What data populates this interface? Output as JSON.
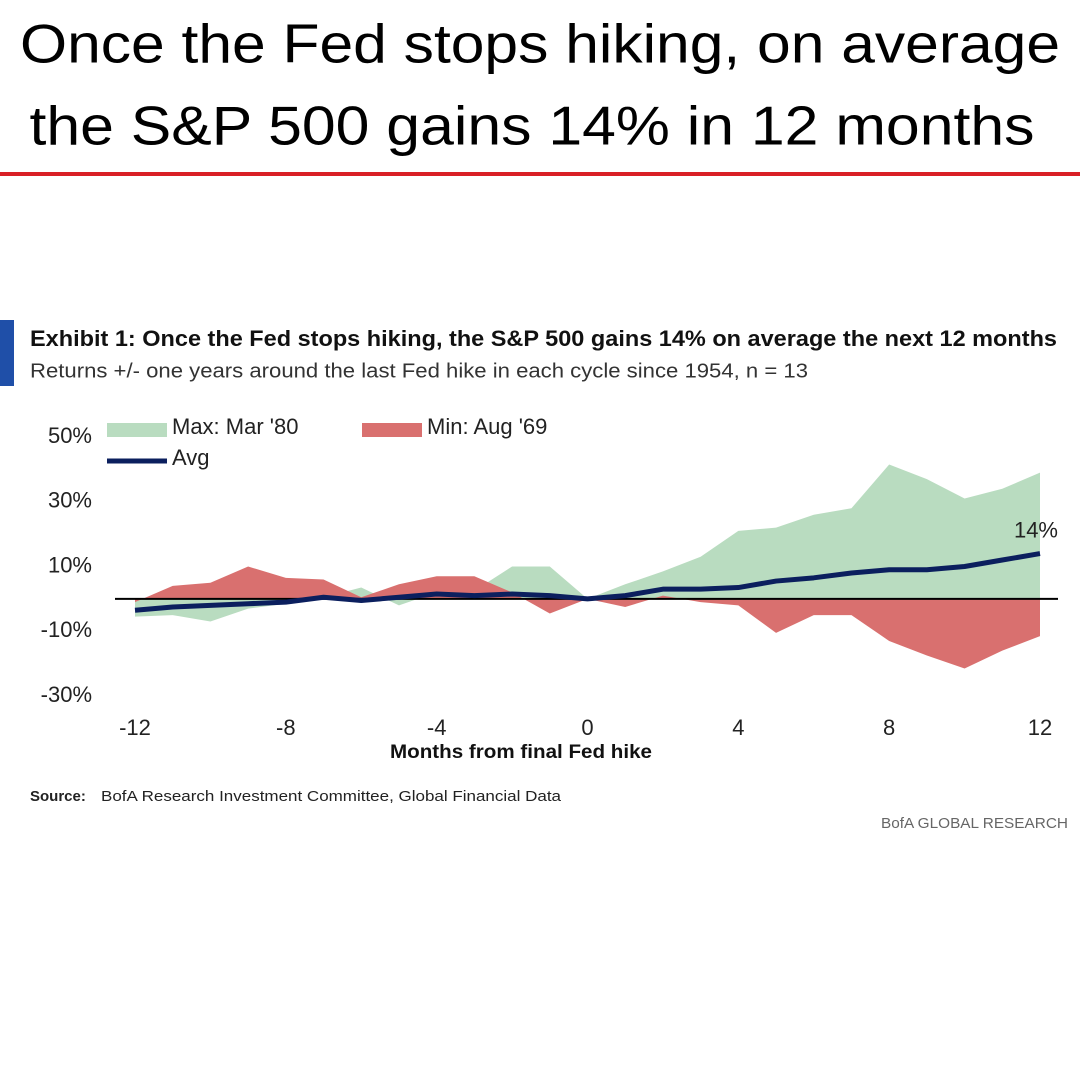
{
  "headline": [
    "Once the Fed stops hiking, on average",
    "the S&P 500 gains 14% in 12 months"
  ],
  "chart_data": {
    "type": "area",
    "title": "Exhibit 1:  Once the Fed stops hiking, the S&P 500 gains 14% on average the next 12 months",
    "subtitle": "Returns +/- one years around the last Fed hike in each cycle since 1954, n = 13",
    "x_label": "Months from final Fed hike",
    "x": [
      -12,
      -11,
      -10,
      -9,
      -8,
      -7,
      -6,
      -5,
      -4,
      -3,
      -2,
      -1,
      0,
      1,
      2,
      3,
      4,
      5,
      6,
      7,
      8,
      9,
      10,
      11,
      12
    ],
    "series": [
      {
        "name": "Max: Mar '80",
        "type": "area",
        "color": "#b9dcc0",
        "values": [
          -5.5,
          -5,
          -7,
          -3,
          -1.5,
          0.5,
          3.5,
          -2,
          2,
          2.5,
          10,
          10,
          0,
          4.5,
          8.5,
          13,
          21,
          22,
          26,
          28,
          41.5,
          37,
          31,
          34,
          39
        ]
      },
      {
        "name": "Min: Aug '69",
        "type": "area",
        "color": "#d9706f",
        "values": [
          -1,
          4,
          5,
          10,
          6.5,
          6,
          0.5,
          4.5,
          7,
          7,
          2,
          -4.5,
          0,
          -2.5,
          1,
          -1,
          -2,
          -10.5,
          -5,
          -5,
          -13,
          -17.5,
          -21.5,
          -16,
          -11.5
        ]
      },
      {
        "name": "Avg",
        "type": "line",
        "color": "#0b1f5e",
        "values": [
          -3.5,
          -2.5,
          -2,
          -1.5,
          -1,
          0.5,
          -0.5,
          0.5,
          1.5,
          1,
          1.5,
          1,
          0,
          1,
          3,
          3,
          3.5,
          5.5,
          6.5,
          8,
          9,
          9,
          10,
          12,
          14
        ],
        "value_labels": [
          null,
          null,
          null,
          null,
          null,
          null,
          null,
          null,
          null,
          null,
          null,
          null,
          null,
          null,
          null,
          null,
          null,
          null,
          null,
          null,
          null,
          null,
          null,
          null,
          "14%"
        ]
      }
    ],
    "xlim": [
      -12,
      12
    ],
    "xticks": [
      -12,
      -8,
      -4,
      0,
      4,
      8,
      12
    ],
    "ylim": [
      -30,
      50
    ],
    "yticks": [
      {
        "value": 50,
        "label": "50%"
      },
      {
        "value": 30,
        "label": "30%"
      },
      {
        "value": 10,
        "label": "10%"
      },
      {
        "value": -10,
        "label": "-10%"
      },
      {
        "value": -30,
        "label": "-30%"
      }
    ],
    "grid": false,
    "legend": "top-left",
    "source_label": "Source:",
    "source": "BofA Research Investment Committee, Global Financial Data",
    "brand": "BofA GLOBAL RESEARCH"
  }
}
